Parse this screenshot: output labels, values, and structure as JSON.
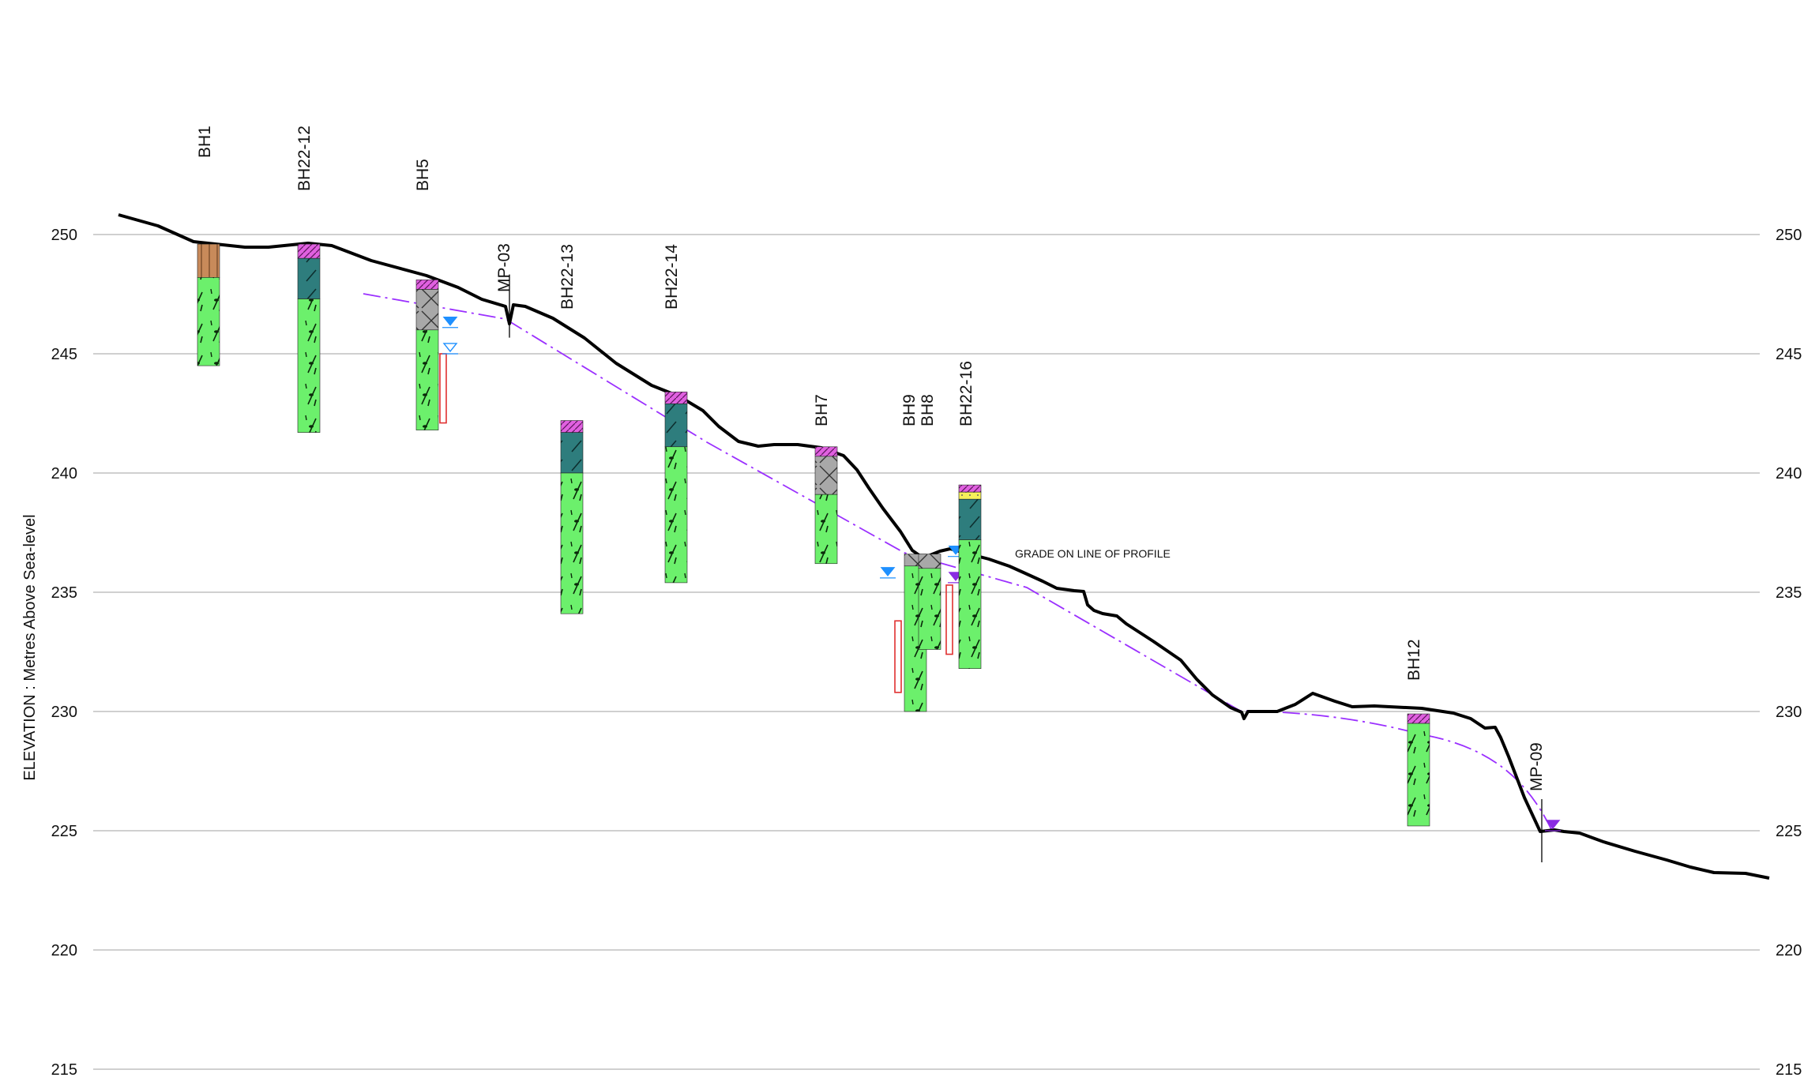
{
  "y_axis": {
    "label": "ELEVATION : Metres Above Sea-level",
    "ticks": [
      250,
      245,
      240,
      235,
      230,
      225,
      220,
      215
    ]
  },
  "annotation": "GRADE ON LINE OF PROFILE",
  "colors": {
    "ground_line": "#000000",
    "water_table_line": "#9b30ff",
    "grid": "#b4b4b4",
    "topsoil": "#e060e0",
    "organic_fill": "#c88a5a",
    "clay": "#2e7d7d",
    "fill_gravel": "#a8a8a8",
    "till_green": "#6cf06c",
    "sand_yellow": "#f5f05a",
    "water_level_blue": "#1e90ff",
    "water_level_purple": "#8a2be2",
    "well_screen": "#e03030"
  },
  "boreholes": [
    {
      "name": "BH1",
      "top": 249.6,
      "layers": [
        {
          "type": "organic",
          "from": 249.6,
          "to": 248.2
        },
        {
          "type": "till",
          "from": 248.2,
          "to": 244.5
        }
      ]
    },
    {
      "name": "BH22-12",
      "top": 249.6,
      "layers": [
        {
          "type": "topsoil",
          "from": 249.6,
          "to": 249.0
        },
        {
          "type": "clay",
          "from": 249.0,
          "to": 247.3
        },
        {
          "type": "till",
          "from": 247.3,
          "to": 241.7
        }
      ]
    },
    {
      "name": "BH5",
      "top": 248.1,
      "layers": [
        {
          "type": "topsoil",
          "from": 248.1,
          "to": 247.7
        },
        {
          "type": "fill",
          "from": 247.7,
          "to": 246.0
        },
        {
          "type": "till",
          "from": 246.0,
          "to": 241.8
        }
      ],
      "water_levels": [
        246.2,
        245.1
      ],
      "screen": [
        245.0,
        242.1
      ]
    },
    {
      "name": "MP-03",
      "top": 247.0
    },
    {
      "name": "BH22-13",
      "top": 242.2,
      "layers": [
        {
          "type": "topsoil",
          "from": 242.2,
          "to": 241.7
        },
        {
          "type": "clay",
          "from": 241.7,
          "to": 240.0
        },
        {
          "type": "till",
          "from": 240.0,
          "to": 234.1
        }
      ]
    },
    {
      "name": "BH22-14",
      "top": 243.4,
      "layers": [
        {
          "type": "topsoil",
          "from": 243.4,
          "to": 242.9
        },
        {
          "type": "clay",
          "from": 242.9,
          "to": 241.1
        },
        {
          "type": "till",
          "from": 241.1,
          "to": 235.4
        }
      ]
    },
    {
      "name": "BH7",
      "top": 241.1,
      "layers": [
        {
          "type": "topsoil",
          "from": 241.1,
          "to": 240.7
        },
        {
          "type": "fill",
          "from": 240.7,
          "to": 239.1
        },
        {
          "type": "till",
          "from": 239.1,
          "to": 236.2
        }
      ]
    },
    {
      "name": "BH9",
      "top": 236.6,
      "layers": [
        {
          "type": "fill",
          "from": 236.6,
          "to": 236.1
        },
        {
          "type": "till",
          "from": 236.1,
          "to": 230.0
        }
      ],
      "water_levels": [
        235.7
      ],
      "screen": [
        233.8,
        230.8
      ]
    },
    {
      "name": "BH8",
      "top": 236.6,
      "layers": [
        {
          "type": "fill",
          "from": 236.6,
          "to": 236.0
        },
        {
          "type": "till",
          "from": 236.0,
          "to": 232.6
        }
      ],
      "water_levels": [
        236.6,
        235.5
      ],
      "screen": [
        235.3,
        232.4
      ]
    },
    {
      "name": "BH22-16",
      "top": 239.5,
      "layers": [
        {
          "type": "topsoil",
          "from": 239.5,
          "to": 239.2
        },
        {
          "type": "sand",
          "from": 239.2,
          "to": 238.9
        },
        {
          "type": "clay",
          "from": 238.9,
          "to": 237.2
        },
        {
          "type": "till",
          "from": 237.2,
          "to": 231.8
        }
      ]
    },
    {
      "name": "BH12",
      "top": 229.9,
      "layers": [
        {
          "type": "topsoil",
          "from": 229.9,
          "to": 229.5
        },
        {
          "type": "till",
          "from": 229.5,
          "to": 225.2
        }
      ]
    },
    {
      "name": "MP-09",
      "top": 225.0,
      "water_levels": [
        225.1
      ]
    }
  ]
}
